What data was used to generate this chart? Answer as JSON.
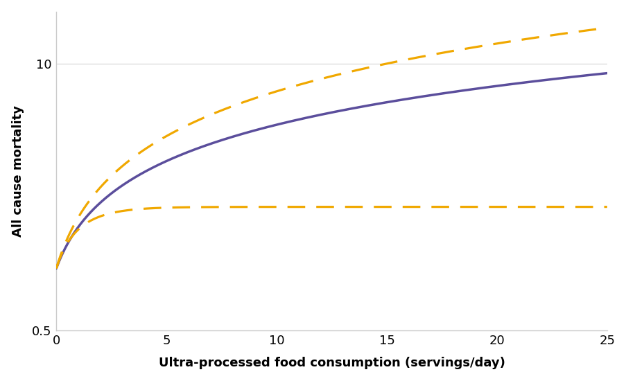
{
  "xlabel": "Ultra-processed food consumption (servings/day)",
  "ylabel": "All cause mortality",
  "background_color": "#ffffff",
  "plot_bg_color": "#ffffff",
  "x_ticks": [
    0,
    5,
    10,
    15,
    20,
    25
  ],
  "xlim": [
    0,
    25
  ],
  "ylim_log": [
    0.5,
    18
  ],
  "main_color": "#5b4e9c",
  "ci_color": "#f0a800",
  "main_lw": 2.5,
  "ci_lw": 2.3,
  "ci_dash": [
    8,
    5
  ],
  "xlabel_fontsize": 13,
  "ylabel_fontsize": 13,
  "tick_fontsize": 13,
  "spine_color": "#cccccc",
  "grid_color": "#d8d8d8",
  "y_start": 1.0,
  "main_end": 9.0,
  "upper_end": 15.0,
  "lower_flat": 2.0,
  "lower_rise_rate": 0.8
}
